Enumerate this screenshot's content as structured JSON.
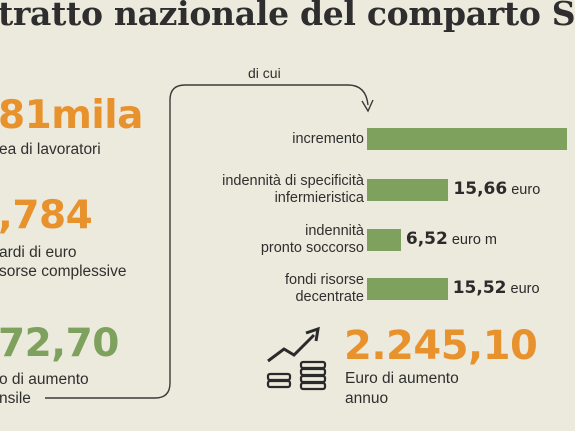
{
  "title": "tratto nazionale del comparto S",
  "di_cui": "di cui",
  "stats": [
    {
      "value": "81mila",
      "desc": [
        "ea di lavoratori"
      ]
    },
    {
      "value": ",784",
      "desc": [
        "ardi di euro",
        "sorse complessive"
      ]
    },
    {
      "value": "72,70",
      "desc": [
        "o di aumento",
        "nsile"
      ]
    }
  ],
  "chart_data": {
    "type": "bar",
    "orientation": "horizontal",
    "categories": [
      "incremento",
      "indennità di specificità infermieristica",
      "indennità pronto soccorso",
      "fondi risorse decentrate"
    ],
    "category_lines": [
      [
        "incremento"
      ],
      [
        "indennità di specificità",
        "infermieristica"
      ],
      [
        "indennità",
        "pronto soccorso"
      ],
      [
        "fondi risorse",
        "decentrate"
      ]
    ],
    "values": [
      null,
      15.66,
      6.52,
      15.52
    ],
    "value_labels": [
      {
        "num": "",
        "unit": ""
      },
      {
        "num": "15,66",
        "unit": "euro"
      },
      {
        "num": "6,52",
        "unit": "euro m"
      },
      {
        "num": "15,52",
        "unit": "euro"
      }
    ],
    "colors": {
      "bar": "#7ea25e"
    }
  },
  "total": {
    "value": "2.245,10",
    "desc": [
      "Euro  di aumento",
      "annuo"
    ],
    "icon": "coins-growth-icon"
  },
  "colors": {
    "background": "#eceadd",
    "orange": "#e8922e",
    "green": "#7ea25e"
  }
}
